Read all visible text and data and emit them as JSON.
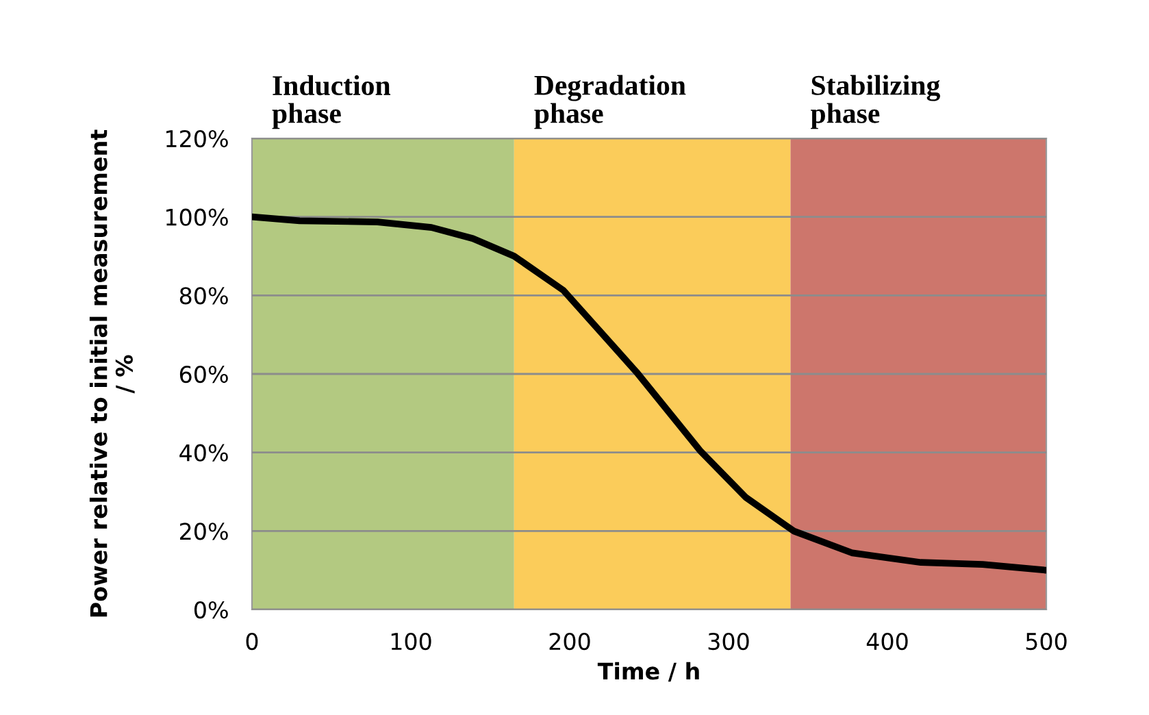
{
  "chart_data": {
    "type": "line",
    "xlabel": "Time / h",
    "ylabel": "Power relative to initial measurement\n/ %",
    "x": [
      0,
      30,
      79,
      113,
      139,
      165,
      196,
      242,
      282,
      311,
      341,
      378,
      421,
      460,
      500
    ],
    "series": [
      {
        "color": "#000000",
        "values": [
          100,
          99,
          98.7,
          97.3,
          94.5,
          90,
          81.3,
          60.5,
          40.5,
          28.5,
          20,
          14.4,
          12,
          11.5,
          10
        ]
      }
    ],
    "xlim": [
      0,
      500
    ],
    "xticks": [
      0,
      100,
      200,
      300,
      400,
      500
    ],
    "ylim": [
      0,
      120
    ],
    "yticks": [
      {
        "value": 0,
        "label": "0%"
      },
      {
        "value": 20,
        "label": "20%"
      },
      {
        "value": 40,
        "label": "40%"
      },
      {
        "value": 60,
        "label": "60%"
      },
      {
        "value": 80,
        "label": "80%"
      },
      {
        "value": 100,
        "label": "100%"
      },
      {
        "value": 120,
        "label": "120%"
      }
    ],
    "grid": "y",
    "marker": "none",
    "line_style": "solid",
    "bands": [
      {
        "axis": "x",
        "from": 0,
        "to": 165,
        "label": "Induction\nphase",
        "color": "#b3c981"
      },
      {
        "axis": "x",
        "from": 165,
        "to": 339,
        "label": "Degradation\nphase",
        "color": "#fbcc5a"
      },
      {
        "axis": "x",
        "from": 339,
        "to": 500,
        "label": "Stabilizing\nphase",
        "color": "#cd766c"
      }
    ]
  }
}
